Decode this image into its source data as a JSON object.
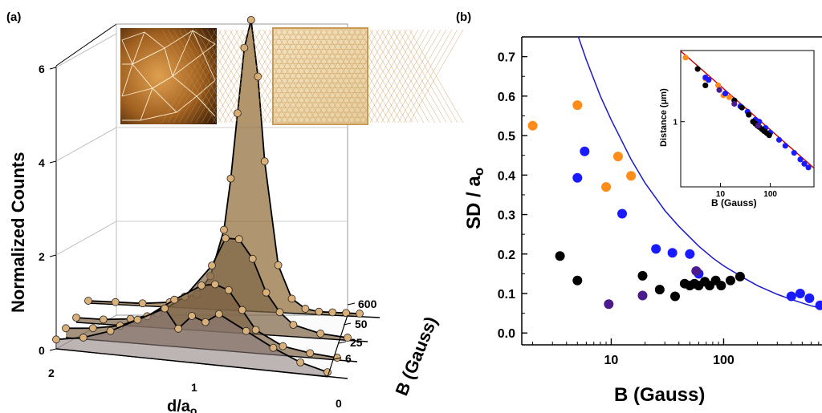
{
  "panels": {
    "a": {
      "label": "(a)",
      "ylabel": "Normalized Counts",
      "xlabel": "d/a",
      "xlabel_sub": "o",
      "zlabel": "B (Gauss)"
    },
    "b": {
      "label": "(b)",
      "ylabel": "SD / a",
      "ylabel_sub": "o",
      "xlabel": "B (Gauss)",
      "inset_ylabel": "Distance (",
      "inset_ylabel_mu": "μm",
      "inset_ylabel_close": ")",
      "inset_xlabel": "B (Gauss)"
    }
  },
  "colors": {
    "orange": "#ff8c1a",
    "blue": "#1a1aff",
    "black": "#000000",
    "purple": "#4b1a8c",
    "fit": "#1a1acc",
    "inset_fit": "#cc0000",
    "bronze": "#8a6a3a",
    "marker": "#d9b07a"
  },
  "chart_data": [
    {
      "type": "surface3d",
      "panel": "a",
      "title": "",
      "ylabel": "Normalized Counts",
      "xlabel": "d/a_o",
      "zlabel": "B (Gauss)",
      "y_ticks": [
        "0",
        "2",
        "4",
        "6"
      ],
      "x_ticks": [
        "2",
        "1",
        "0"
      ],
      "series": [
        {
          "name": "6",
          "x": [
            2.0,
            1.8,
            1.6,
            1.4,
            1.2,
            1.1,
            1.0,
            0.9,
            0.8,
            0.6,
            0.4,
            0.2,
            0.0
          ],
          "values": [
            0.2,
            0.3,
            0.5,
            0.8,
            1.1,
            0.7,
            1.0,
            0.9,
            1.1,
            0.8,
            0.5,
            0.25,
            0.1
          ]
        },
        {
          "name": "25",
          "x": [
            2.0,
            1.8,
            1.6,
            1.4,
            1.2,
            1.0,
            0.9,
            0.8,
            0.7,
            0.6,
            0.4,
            0.2,
            0.0
          ],
          "values": [
            0.2,
            0.25,
            0.35,
            0.6,
            1.0,
            1.35,
            1.4,
            1.3,
            0.9,
            0.5,
            0.2,
            0.1,
            0.05
          ]
        },
        {
          "name": "50",
          "x": [
            2.0,
            1.8,
            1.6,
            1.4,
            1.2,
            1.0,
            0.9,
            0.8,
            0.7,
            0.6,
            0.5,
            0.4,
            0.2,
            0.0
          ],
          "values": [
            0.1,
            0.1,
            0.15,
            0.3,
            0.7,
            1.4,
            2.0,
            2.0,
            1.6,
            0.9,
            0.5,
            0.25,
            0.1,
            0.05
          ]
        },
        {
          "name": "600",
          "x": [
            2.0,
            1.8,
            1.6,
            1.4,
            1.2,
            1.1,
            1.0,
            0.95,
            0.9,
            0.85,
            0.8,
            0.75,
            0.7,
            0.6,
            0.5,
            0.4,
            0.3,
            0.2,
            0.1,
            0.0
          ],
          "values": [
            0.05,
            0.05,
            0.05,
            0.1,
            0.3,
            0.7,
            1.7,
            2.8,
            4.2,
            5.6,
            6.2,
            5.0,
            3.2,
            1.0,
            0.3,
            0.1,
            0.05,
            0.05,
            0.05,
            0.05
          ]
        }
      ],
      "z_ticks": [
        "600",
        "50",
        "25",
        "6"
      ]
    },
    {
      "type": "scatter",
      "panel": "b",
      "title": "",
      "xlabel": "B (Gauss)",
      "ylabel": "SD / a_o",
      "xscale": "log",
      "xlim": [
        1.6,
        750
      ],
      "ylim": [
        -0.03,
        0.75
      ],
      "x_ticks": [
        10,
        100
      ],
      "y_ticks": [
        0.0,
        0.1,
        0.2,
        0.3,
        0.4,
        0.5,
        0.6,
        0.7
      ],
      "grid": false,
      "series": [
        {
          "color": "orange",
          "x": [
            2,
            5,
            9,
            11.5,
            15
          ],
          "values": [
            0.525,
            0.577,
            0.37,
            0.447,
            0.398
          ]
        },
        {
          "color": "blue",
          "x": [
            5,
            5.8,
            12.5,
            25,
            35,
            50,
            60,
            400,
            480,
            580,
            720
          ],
          "values": [
            0.393,
            0.46,
            0.302,
            0.213,
            0.203,
            0.2,
            0.15,
            0.093,
            0.1,
            0.088,
            0.07
          ]
        },
        {
          "color": "black",
          "x": [
            3.5,
            5,
            19,
            27,
            37,
            45,
            50,
            55,
            60,
            68,
            75,
            85,
            95,
            115,
            140
          ],
          "values": [
            0.195,
            0.133,
            0.145,
            0.11,
            0.093,
            0.125,
            0.12,
            0.125,
            0.12,
            0.13,
            0.12,
            0.133,
            0.12,
            0.133,
            0.143
          ]
        },
        {
          "color": "purple",
          "x": [
            9.5,
            19,
            57
          ],
          "values": [
            0.073,
            0.095,
            0.157
          ]
        }
      ],
      "fit": {
        "color": "fit",
        "x": [
          5.1,
          6,
          8,
          10,
          15,
          20,
          30,
          40,
          60,
          80,
          100,
          150,
          200,
          300,
          400,
          500,
          600,
          750
        ],
        "values": [
          0.75,
          0.692,
          0.6,
          0.54,
          0.44,
          0.38,
          0.31,
          0.27,
          0.22,
          0.19,
          0.17,
          0.14,
          0.12,
          0.098,
          0.085,
          0.076,
          0.069,
          0.062
        ]
      }
    },
    {
      "type": "scatter",
      "panel": "b-inset",
      "xlabel": "B (Gauss)",
      "ylabel": "Distance (μm)",
      "xscale": "log",
      "yscale": "log",
      "xlim": [
        1.6,
        750
      ],
      "ylim": [
        0.18,
        6.5
      ],
      "x_ticks": [
        10,
        100
      ],
      "y_ticks": [
        1
      ],
      "series": [
        {
          "color": "orange",
          "x": [
            2,
            5,
            9,
            11.5,
            15
          ],
          "values": [
            5.4,
            3.1,
            2.6,
            2.0,
            1.9
          ]
        },
        {
          "color": "blue",
          "x": [
            5,
            5.8,
            12.5,
            25,
            35,
            50,
            60,
            80,
            100,
            150,
            200,
            300,
            400,
            480,
            580
          ],
          "values": [
            3.2,
            3.0,
            2.1,
            1.5,
            1.3,
            1.05,
            1.0,
            0.85,
            0.75,
            0.62,
            0.53,
            0.44,
            0.37,
            0.33,
            0.3
          ]
        },
        {
          "color": "black",
          "x": [
            3.5,
            5,
            19,
            27,
            37,
            45,
            50,
            55,
            60,
            68,
            75,
            85,
            95
          ],
          "values": [
            4.0,
            2.6,
            1.75,
            1.45,
            1.2,
            1.0,
            0.95,
            0.9,
            0.87,
            0.82,
            0.78,
            0.74,
            0.7
          ]
        },
        {
          "color": "purple",
          "x": [
            9.5,
            19,
            57
          ],
          "values": [
            2.3,
            1.6,
            0.9
          ]
        }
      ],
      "fit": {
        "color": "inset_fit",
        "x": [
          1.6,
          750
        ],
        "values": [
          6.4,
          0.295
        ]
      }
    }
  ]
}
